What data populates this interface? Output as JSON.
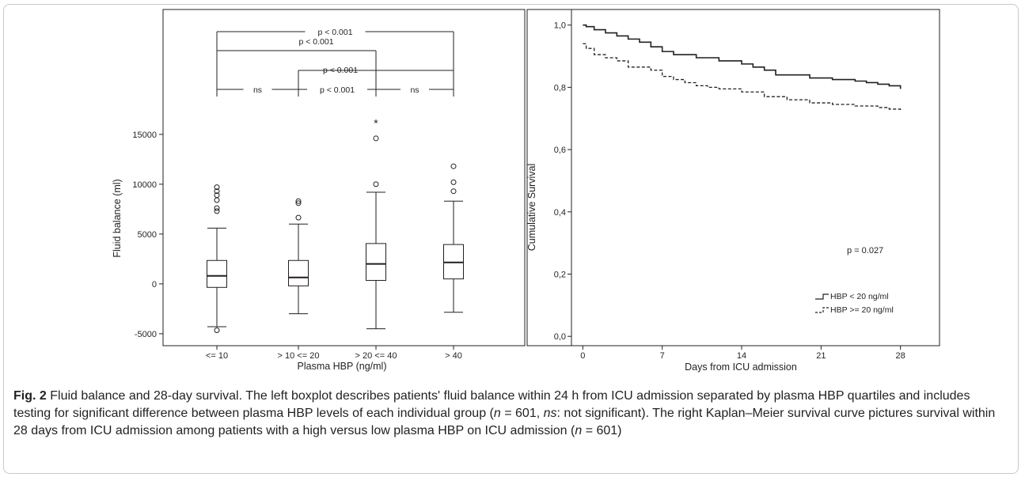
{
  "chart_data": [
    {
      "type": "boxplot",
      "xlabel": "Plasma HBP (ng/ml)",
      "ylabel": "Fluid balance (ml)",
      "categories": [
        "<= 10",
        "> 10 <= 20",
        "> 20 <= 40",
        "> 40"
      ],
      "yticks": [
        "-5000",
        "0",
        "5000",
        "10000",
        "15000"
      ],
      "ylim": [
        -6200,
        18800
      ],
      "boxes": [
        {
          "category": "<= 10",
          "q1": -350,
          "median": 800,
          "q3": 2350,
          "whisker_low": -4300,
          "whisker_high": 5600,
          "outliers": [
            7300,
            7600,
            8400,
            8900,
            9300,
            9700,
            -4650
          ],
          "extremes": []
        },
        {
          "category": "> 10 <= 20",
          "q1": -200,
          "median": 650,
          "q3": 2350,
          "whisker_low": -3000,
          "whisker_high": 6000,
          "outliers": [
            6650,
            8100,
            8300
          ],
          "extremes": []
        },
        {
          "category": "> 20 <= 40",
          "q1": 350,
          "median": 2000,
          "q3": 4050,
          "whisker_low": -4500,
          "whisker_high": 9200,
          "outliers": [
            10000,
            14600
          ],
          "extremes": [
            16300
          ]
        },
        {
          "category": "> 40",
          "q1": 500,
          "median": 2150,
          "q3": 3950,
          "whisker_low": -2850,
          "whisker_high": 8300,
          "outliers": [
            9300,
            10200,
            11800
          ],
          "extremes": []
        }
      ],
      "comparisons": [
        {
          "from": 1,
          "to": 4,
          "label": "p < 0.001"
        },
        {
          "from": 1,
          "to": 3,
          "label": "p < 0.001"
        },
        {
          "from": 2,
          "to": 4,
          "label": "p < 0.001"
        },
        {
          "from": 1,
          "to": 2,
          "label": "ns"
        },
        {
          "from": 2,
          "to": 3,
          "label": "p < 0.001"
        },
        {
          "from": 3,
          "to": 4,
          "label": "ns"
        }
      ]
    },
    {
      "type": "line",
      "subtype": "kaplan-meier step",
      "xlabel": "Days from ICU admission",
      "ylabel": "Cumulative Survival",
      "xticks": [
        "0",
        "7",
        "14",
        "21",
        "28"
      ],
      "yticks": [
        "0,0",
        "0,2",
        "0,4",
        "0,6",
        "0,8",
        "1,0"
      ],
      "xlim": [
        -1,
        29
      ],
      "ylim": [
        -0.03,
        1.05
      ],
      "annotation": "p = 0.027",
      "legend_position": "bottom-right",
      "series": [
        {
          "name": "HBP < 20 ng/ml",
          "style": "solid",
          "x": [
            0,
            0.3,
            1,
            2,
            3,
            4,
            5,
            6,
            7,
            8,
            10,
            12,
            14,
            15,
            16,
            17,
            20,
            22,
            24,
            25,
            26,
            27,
            28
          ],
          "y": [
            1.0,
            0.995,
            0.985,
            0.975,
            0.965,
            0.955,
            0.945,
            0.93,
            0.915,
            0.905,
            0.895,
            0.885,
            0.875,
            0.865,
            0.855,
            0.84,
            0.83,
            0.825,
            0.82,
            0.815,
            0.81,
            0.805,
            0.795
          ]
        },
        {
          "name": "HBP >= 20 ng/ml",
          "style": "dashed",
          "x": [
            0,
            0.3,
            1,
            2,
            3,
            4,
            6,
            7,
            8,
            9,
            10,
            11,
            12,
            14,
            16,
            18,
            20,
            22,
            24,
            26,
            27,
            28
          ],
          "y": [
            0.94,
            0.925,
            0.905,
            0.895,
            0.885,
            0.865,
            0.855,
            0.835,
            0.825,
            0.815,
            0.805,
            0.8,
            0.795,
            0.785,
            0.77,
            0.76,
            0.75,
            0.745,
            0.74,
            0.735,
            0.73,
            0.725
          ]
        }
      ]
    }
  ],
  "caption": {
    "label": "Fig. 2",
    "text_1": "Fluid balance and 28-day survival. The left boxplot describes patients' fluid balance within 24 h from ICU admission separated by plasma HBP quartiles and includes testing for significant difference between plasma HBP levels of each individual group (",
    "n1_var": "n",
    "n1_eq": " = 601, ",
    "ns_abbr": "ns",
    "text_2": ": not significant). The right Kaplan–Meier survival curve pictures survival within 28 days from ICU admission among patients with a high versus low plasma HBP on ICU admission (",
    "n2_var": "n",
    "n2_eq": " = 601)"
  }
}
